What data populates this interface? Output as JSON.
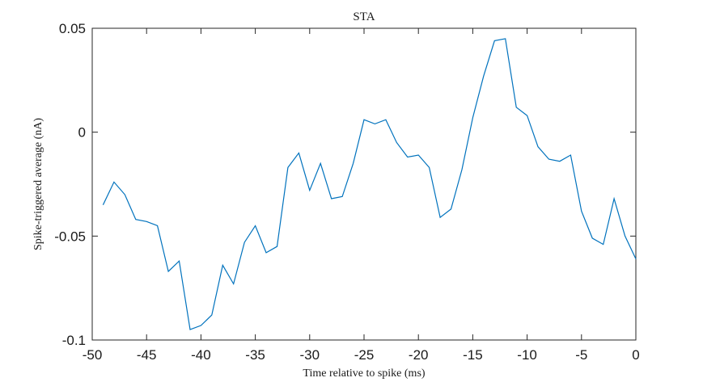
{
  "chart_data": {
    "type": "line",
    "title": "STA",
    "xlabel": "Time relative to spike (ms)",
    "ylabel": "Spike-triggered average (nA)",
    "xlim": [
      -50,
      0
    ],
    "ylim": [
      -0.1,
      0.05
    ],
    "xticks": [
      -50,
      -45,
      -40,
      -35,
      -30,
      -25,
      -20,
      -15,
      -10,
      -5,
      0
    ],
    "xtick_labels": [
      "-50",
      "-45",
      "-40",
      "-35",
      "-30",
      "-25",
      "-20",
      "-15",
      "-10",
      "-5",
      "0"
    ],
    "yticks": [
      0.05,
      0,
      -0.05,
      -0.1
    ],
    "ytick_labels": [
      "0.05",
      "0",
      "-0.05",
      "-0.1"
    ],
    "grid": false,
    "line_color": "#0072bd",
    "series": [
      {
        "x": [
          -49,
          -48,
          -47,
          -46,
          -45,
          -44,
          -43,
          -42,
          -41,
          -40,
          -39,
          -38,
          -37,
          -36,
          -35,
          -34,
          -33,
          -32,
          -31,
          -30,
          -29,
          -28,
          -27,
          -26,
          -25,
          -24,
          -23,
          -22,
          -21,
          -20,
          -19,
          -18,
          -17,
          -16,
          -15,
          -14,
          -13,
          -12,
          -11,
          -10,
          -9,
          -8,
          -7,
          -6,
          -5,
          -4,
          -3,
          -2,
          -1,
          0
        ],
        "y": [
          -0.035,
          -0.024,
          -0.03,
          -0.042,
          -0.043,
          -0.045,
          -0.067,
          -0.062,
          -0.095,
          -0.093,
          -0.088,
          -0.064,
          -0.073,
          -0.053,
          -0.045,
          -0.058,
          -0.055,
          -0.017,
          -0.01,
          -0.028,
          -0.015,
          -0.032,
          -0.031,
          -0.015,
          0.006,
          0.004,
          0.006,
          -0.005,
          -0.012,
          -0.011,
          -0.017,
          -0.041,
          -0.037,
          -0.018,
          0.007,
          0.027,
          0.044,
          0.045,
          0.012,
          0.008,
          -0.007,
          -0.013,
          -0.014,
          -0.011,
          -0.038,
          -0.051,
          -0.054,
          -0.032,
          -0.05,
          -0.061
        ]
      }
    ]
  }
}
